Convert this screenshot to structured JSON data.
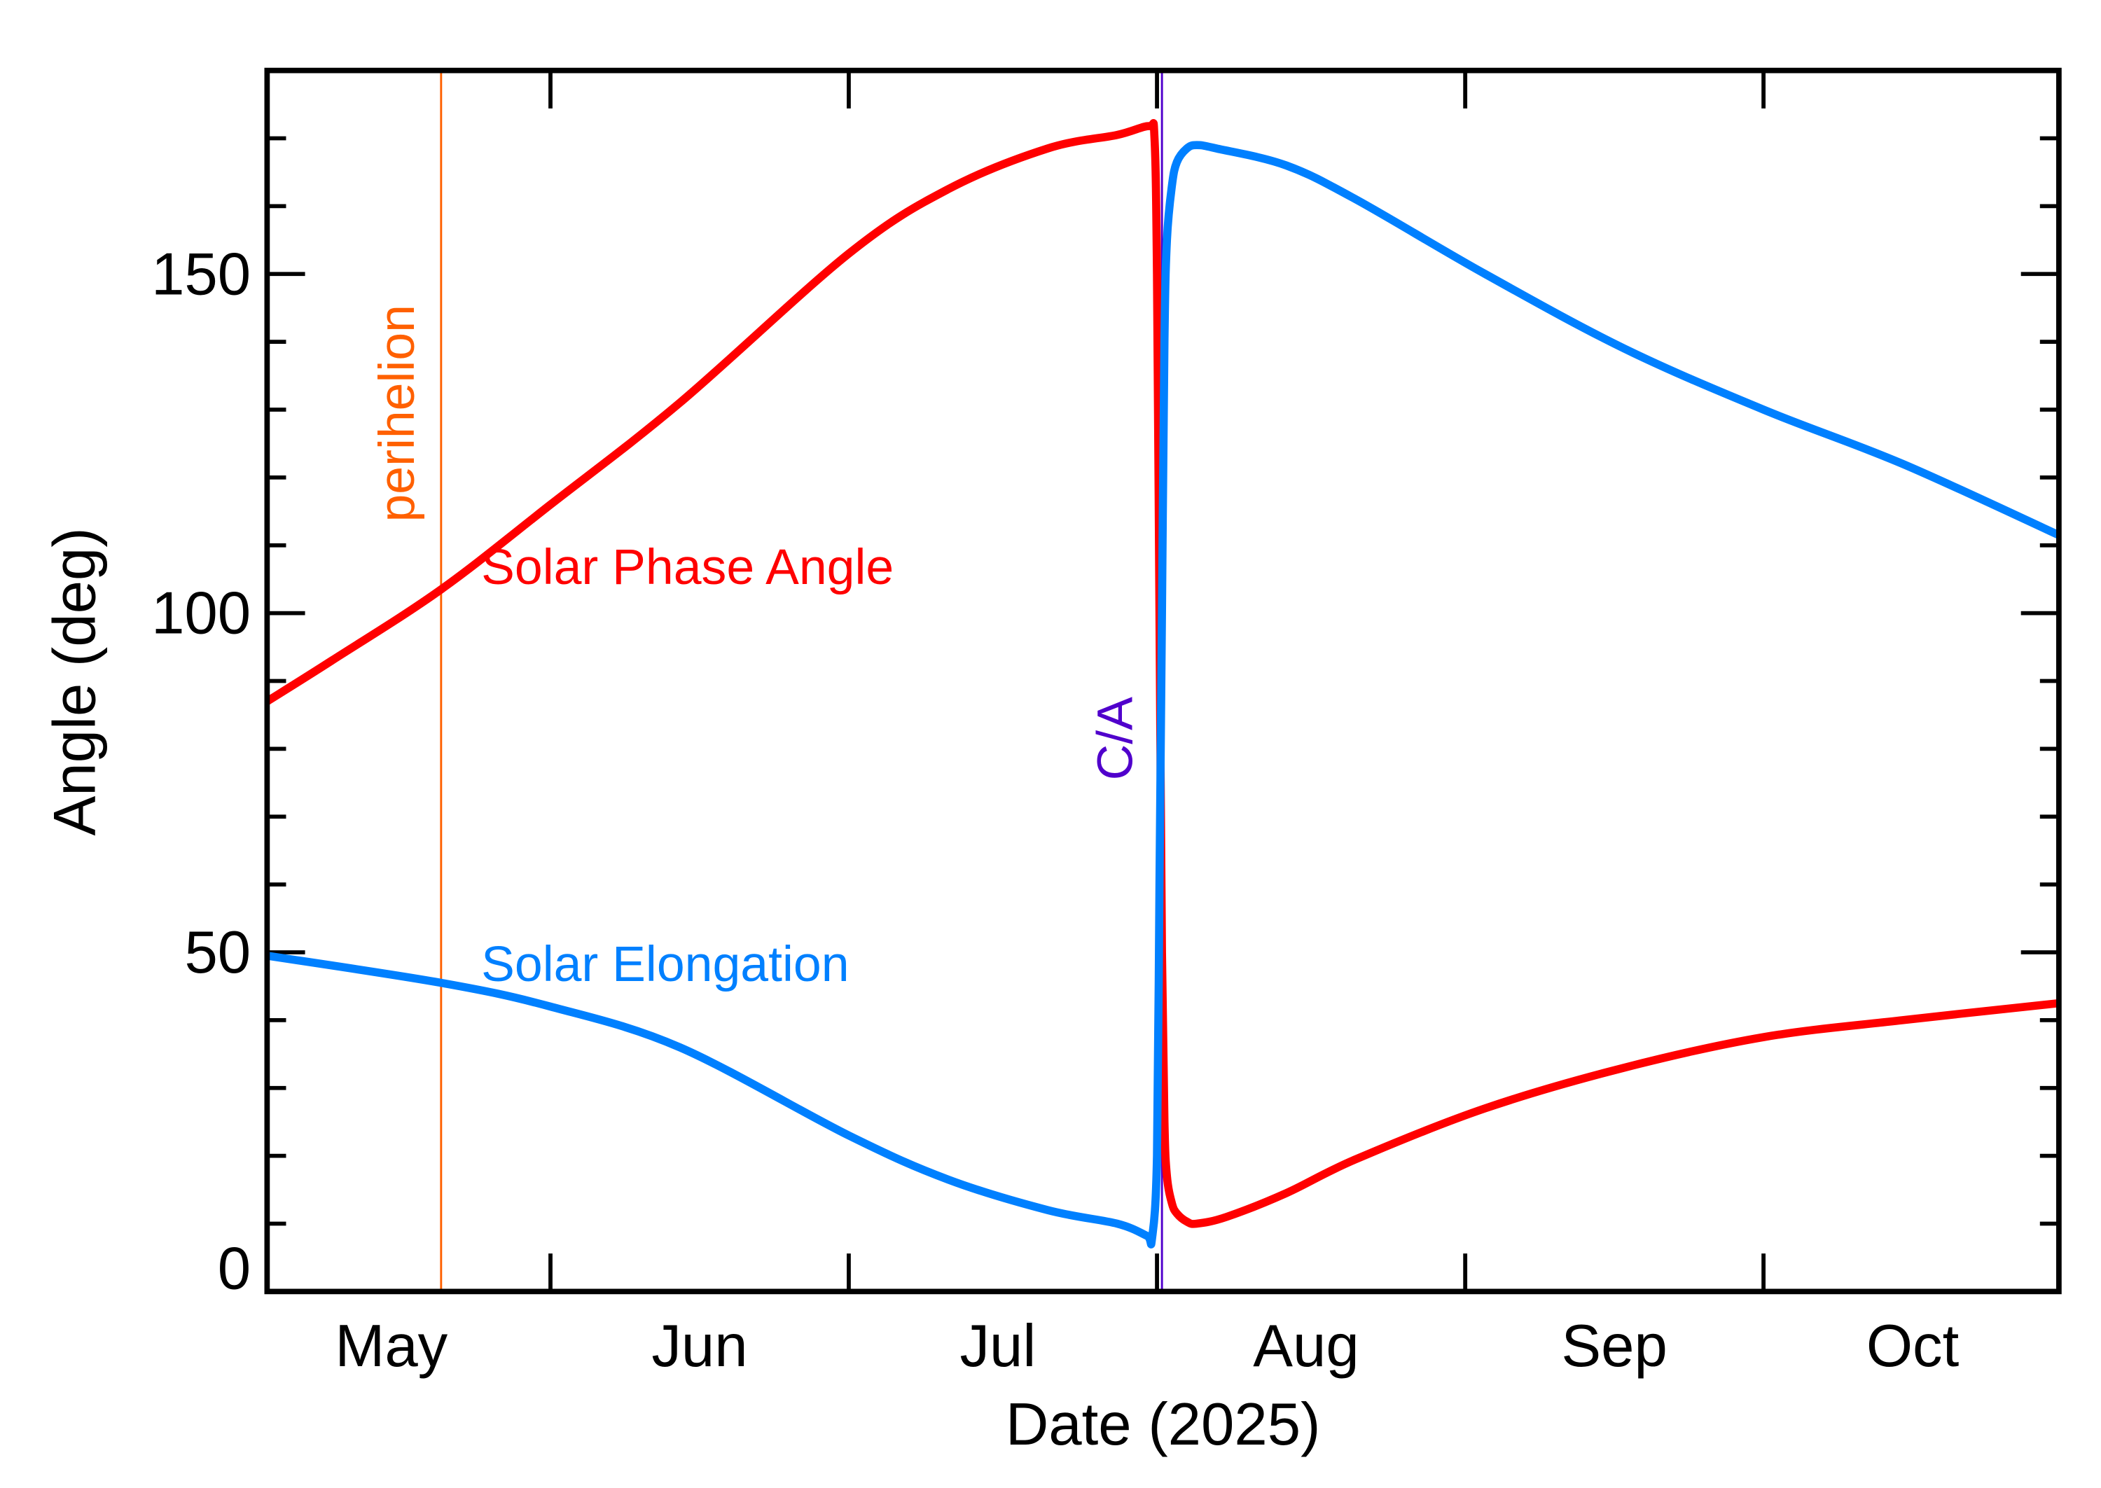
{
  "chart_data": {
    "type": "line",
    "title": "",
    "xlabel": "Date (2025)",
    "ylabel": "Angle (deg)",
    "xlim": [
      "2025-05-03T12:00",
      "2025-10-30T17:00"
    ],
    "ylim": [
      0,
      180
    ],
    "y_major_ticks": [
      0,
      50,
      100,
      150
    ],
    "y_minor_step": 10,
    "x_ticks": [
      "2025-06-01",
      "2025-07-01",
      "2025-08-01",
      "2025-09-01",
      "2025-10-01"
    ],
    "x_tick_labels": [
      {
        "label": "May",
        "month": "2025-05"
      },
      {
        "label": "Jun",
        "month": "2025-06"
      },
      {
        "label": "Jul",
        "month": "2025-07"
      },
      {
        "label": "Aug",
        "month": "2025-08"
      },
      {
        "label": "Sep",
        "month": "2025-09"
      },
      {
        "label": "Oct",
        "month": "2025-10"
      }
    ],
    "grid": false,
    "series": [
      {
        "name": "Solar Phase Angle",
        "color": "#ff0000",
        "x": [
          "2025-05-03T12:00",
          "2025-05-10",
          "2025-05-21",
          "2025-06-01",
          "2025-06-14",
          "2025-07-01",
          "2025-07-11",
          "2025-07-21",
          "2025-07-28",
          "2025-07-31T06:00",
          "2025-07-31T18:00",
          "2025-08-01T00:00",
          "2025-08-01T06:00",
          "2025-08-01T12:00",
          "2025-08-01T18:00",
          "2025-08-02T00:00",
          "2025-08-02T12:00",
          "2025-08-03",
          "2025-08-04",
          "2025-08-05",
          "2025-08-08",
          "2025-08-14",
          "2025-08-21",
          "2025-09-03",
          "2025-09-17",
          "2025-10-01",
          "2025-10-15",
          "2025-10-30T17:00"
        ],
        "y": [
          87,
          93,
          103.5,
          116,
          131,
          153,
          162.5,
          168.5,
          170.5,
          171.8,
          170,
          150,
          100,
          50,
          25,
          17,
          13,
          11.5,
          10.3,
          10,
          11,
          14.5,
          19.5,
          27,
          33,
          37.5,
          40,
          42.5
        ]
      },
      {
        "name": "Solar Elongation",
        "color": "#0080ff",
        "x": [
          "2025-05-03T12:00",
          "2025-05-21",
          "2025-06-01",
          "2025-06-14",
          "2025-07-01",
          "2025-07-11",
          "2025-07-21",
          "2025-07-28",
          "2025-07-31T00:00",
          "2025-07-31T12:00",
          "2025-08-01T00:00",
          "2025-08-01T06:00",
          "2025-08-01T12:00",
          "2025-08-01T18:00",
          "2025-08-02T00:00",
          "2025-08-02T12:00",
          "2025-08-03",
          "2025-08-04",
          "2025-08-05",
          "2025-08-07",
          "2025-08-14",
          "2025-08-21",
          "2025-09-03",
          "2025-09-17",
          "2025-10-01",
          "2025-10-15",
          "2025-10-30T17:00"
        ],
        "y": [
          49.5,
          45.5,
          42,
          36,
          23,
          16.5,
          12,
          10,
          8.2,
          7.8,
          20,
          60,
          100,
          140,
          155,
          163,
          166.5,
          168.5,
          169,
          168.5,
          166,
          161,
          150,
          139,
          130,
          122,
          111.5
        ]
      }
    ],
    "annotations": [
      {
        "text": "perihelion",
        "date": "2025-05-21",
        "color": "#ff6000",
        "orientation": "vertical"
      },
      {
        "text": "C/A",
        "date": "2025-08-01T12:00",
        "color": "#5000cc",
        "orientation": "vertical"
      }
    ],
    "series_labels": [
      {
        "text": "Solar Phase Angle",
        "color": "#ff0000"
      },
      {
        "text": "Solar Elongation",
        "color": "#0080ff"
      }
    ]
  }
}
